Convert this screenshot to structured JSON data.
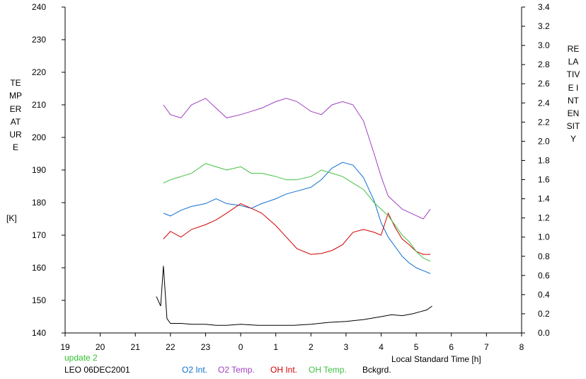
{
  "update_text": "update 2",
  "site_text": "LEO 06DEC2001",
  "chart_data": {
    "type": "line",
    "xlabel": "Local Standard Time [h]",
    "ylabel_left": "TEMPERATURE",
    "ylabel_left_unit": "[K]",
    "ylabel_right": "RELATIVE INTENSITY",
    "x_ticks": [
      "19",
      "20",
      "21",
      "22",
      "23",
      "0",
      "1",
      "2",
      "3",
      "4",
      "5",
      "6",
      "7",
      "8"
    ],
    "xlim": [
      19,
      32
    ],
    "ylim_left": [
      140,
      240
    ],
    "ylim_right": [
      0,
      3.4
    ],
    "y_ticks_left": [
      140,
      150,
      160,
      170,
      180,
      190,
      200,
      210,
      220,
      230,
      240
    ],
    "y_ticks_right": [
      "0.0",
      "0.2",
      "0.4",
      "0.6",
      "0.8",
      "1.0",
      "1.2",
      "1.4",
      "1.6",
      "1.8",
      "2.0",
      "2.2",
      "2.4",
      "2.6",
      "2.8",
      "3.0",
      "3.2",
      "3.4"
    ],
    "grid": false,
    "legend_placement": "bottom",
    "series": [
      {
        "name": "O2 Int.",
        "color": "#1070d0",
        "axis": "right",
        "x": [
          21.8,
          22.0,
          22.3,
          22.6,
          23.0,
          23.3,
          23.6,
          24.0,
          24.3,
          24.6,
          25.0,
          25.3,
          25.6,
          26.0,
          26.3,
          26.6,
          26.9,
          27.2,
          27.5,
          27.8,
          28.0,
          28.2,
          28.4,
          28.6,
          28.8,
          29.0,
          29.2,
          29.4
        ],
        "y": [
          1.25,
          1.22,
          1.28,
          1.32,
          1.35,
          1.4,
          1.35,
          1.33,
          1.3,
          1.35,
          1.4,
          1.45,
          1.48,
          1.52,
          1.6,
          1.72,
          1.78,
          1.75,
          1.62,
          1.38,
          1.15,
          1.0,
          0.9,
          0.8,
          0.73,
          0.68,
          0.65,
          0.62
        ]
      },
      {
        "name": "O2 Temp.",
        "color": "#a040c0",
        "axis": "left",
        "x": [
          21.8,
          22.0,
          22.3,
          22.6,
          23.0,
          23.3,
          23.6,
          24.0,
          24.3,
          24.6,
          25.0,
          25.3,
          25.6,
          26.0,
          26.3,
          26.6,
          26.9,
          27.2,
          27.5,
          27.8,
          28.0,
          28.2,
          28.4,
          28.6,
          28.8,
          29.0,
          29.2,
          29.4
        ],
        "y": [
          210,
          207,
          206,
          210,
          212,
          209,
          206,
          207,
          208,
          209,
          211,
          212,
          211,
          208,
          207,
          210,
          211,
          210,
          205,
          195,
          188,
          182,
          180,
          178,
          177,
          176,
          175,
          178
        ]
      },
      {
        "name": "OH Int.",
        "color": "#d00000",
        "axis": "right",
        "x": [
          21.8,
          22.0,
          22.3,
          22.6,
          23.0,
          23.3,
          23.6,
          24.0,
          24.3,
          24.6,
          25.0,
          25.3,
          25.6,
          26.0,
          26.3,
          26.6,
          26.9,
          27.2,
          27.5,
          27.8,
          28.0,
          28.2,
          28.4,
          28.6,
          28.8,
          29.0,
          29.2,
          29.4
        ],
        "y": [
          0.98,
          1.06,
          1.0,
          1.08,
          1.13,
          1.18,
          1.25,
          1.35,
          1.3,
          1.25,
          1.12,
          1.0,
          0.88,
          0.82,
          0.83,
          0.86,
          0.92,
          1.05,
          1.08,
          1.05,
          1.02,
          1.25,
          1.1,
          0.98,
          0.92,
          0.85,
          0.82,
          0.82
        ]
      },
      {
        "name": "OH Temp.",
        "color": "#40c040",
        "axis": "left",
        "x": [
          21.8,
          22.0,
          22.3,
          22.6,
          23.0,
          23.3,
          23.6,
          24.0,
          24.3,
          24.6,
          25.0,
          25.3,
          25.6,
          26.0,
          26.3,
          26.6,
          26.9,
          27.2,
          27.5,
          27.8,
          28.0,
          28.2,
          28.4,
          28.6,
          28.8,
          29.0,
          29.2,
          29.4
        ],
        "y": [
          186,
          187,
          188,
          189,
          192,
          191,
          190,
          191,
          189,
          189,
          188,
          187,
          187,
          188,
          190,
          189,
          188,
          186,
          184,
          180,
          178,
          176,
          173,
          170,
          168,
          165,
          163,
          162
        ]
      },
      {
        "name": "Bckgrd.",
        "color": "#000000",
        "axis": "right",
        "x": [
          21.6,
          21.72,
          21.8,
          21.9,
          22.0,
          22.3,
          22.6,
          23.0,
          23.3,
          23.6,
          24.0,
          24.5,
          25.0,
          25.5,
          26.0,
          26.5,
          27.0,
          27.5,
          28.0,
          28.3,
          28.6,
          28.9,
          29.1,
          29.3,
          29.45
        ],
        "y": [
          0.38,
          0.28,
          0.7,
          0.15,
          0.1,
          0.1,
          0.09,
          0.09,
          0.08,
          0.08,
          0.09,
          0.08,
          0.08,
          0.08,
          0.09,
          0.11,
          0.12,
          0.14,
          0.17,
          0.19,
          0.18,
          0.2,
          0.22,
          0.24,
          0.28
        ]
      }
    ]
  }
}
